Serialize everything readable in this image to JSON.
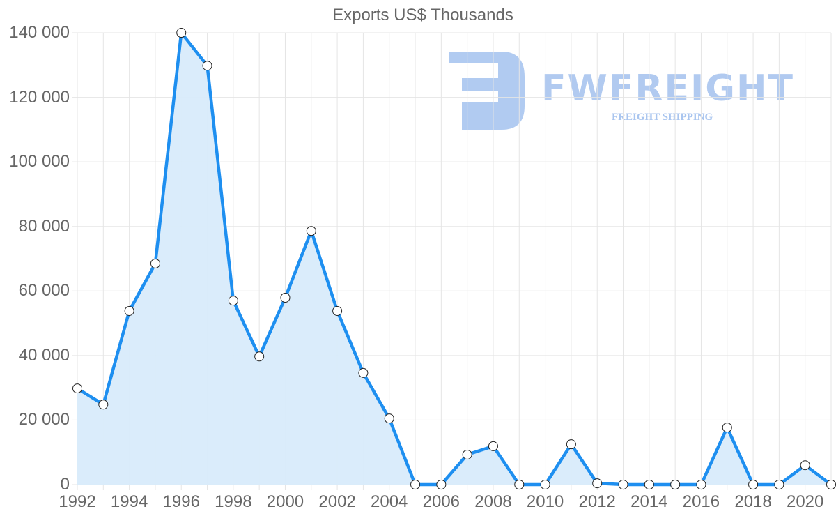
{
  "chart_data": {
    "type": "line",
    "title": "Exports US$ Thousands",
    "xlabel": "",
    "ylabel": "",
    "filled": true,
    "grid": true,
    "legend": "none",
    "ylim": [
      0,
      140000
    ],
    "y_ticks": [
      "0",
      "20 000",
      "40 000",
      "60 000",
      "80 000",
      "100 000",
      "120 000",
      "140 000"
    ],
    "x_tick_labels": [
      "1992",
      "1994",
      "1996",
      "1998",
      "2000",
      "2002",
      "2004",
      "2006",
      "2008",
      "2010",
      "2012",
      "2014",
      "2016",
      "2018",
      "2020"
    ],
    "x": [
      1992,
      1993,
      1994,
      1995,
      1996,
      1997,
      1998,
      1999,
      2000,
      2001,
      2002,
      2003,
      2004,
      2005,
      2006,
      2007,
      2008,
      2009,
      2010,
      2011,
      2012,
      2013,
      2014,
      2015,
      2016,
      2017,
      2018,
      2019,
      2020,
      2021
    ],
    "series": [
      {
        "name": "Exports US$ Thousands",
        "values": [
          29800,
          24800,
          53800,
          68500,
          140000,
          129800,
          57000,
          39700,
          57900,
          78600,
          53800,
          34600,
          20500,
          0,
          0,
          9300,
          11900,
          0,
          0,
          12500,
          400,
          0,
          0,
          0,
          0,
          17700,
          0,
          0,
          6000,
          0
        ]
      }
    ]
  },
  "colors": {
    "line": "#1e8ff0",
    "fill": "#d8ebfb",
    "grid": "#e5e5e5",
    "text": "#666666",
    "watermark": "#a9c5ef"
  },
  "watermark": {
    "brand": "FWFREIGHT",
    "tagline": "FREIGHT SHIPPING"
  }
}
